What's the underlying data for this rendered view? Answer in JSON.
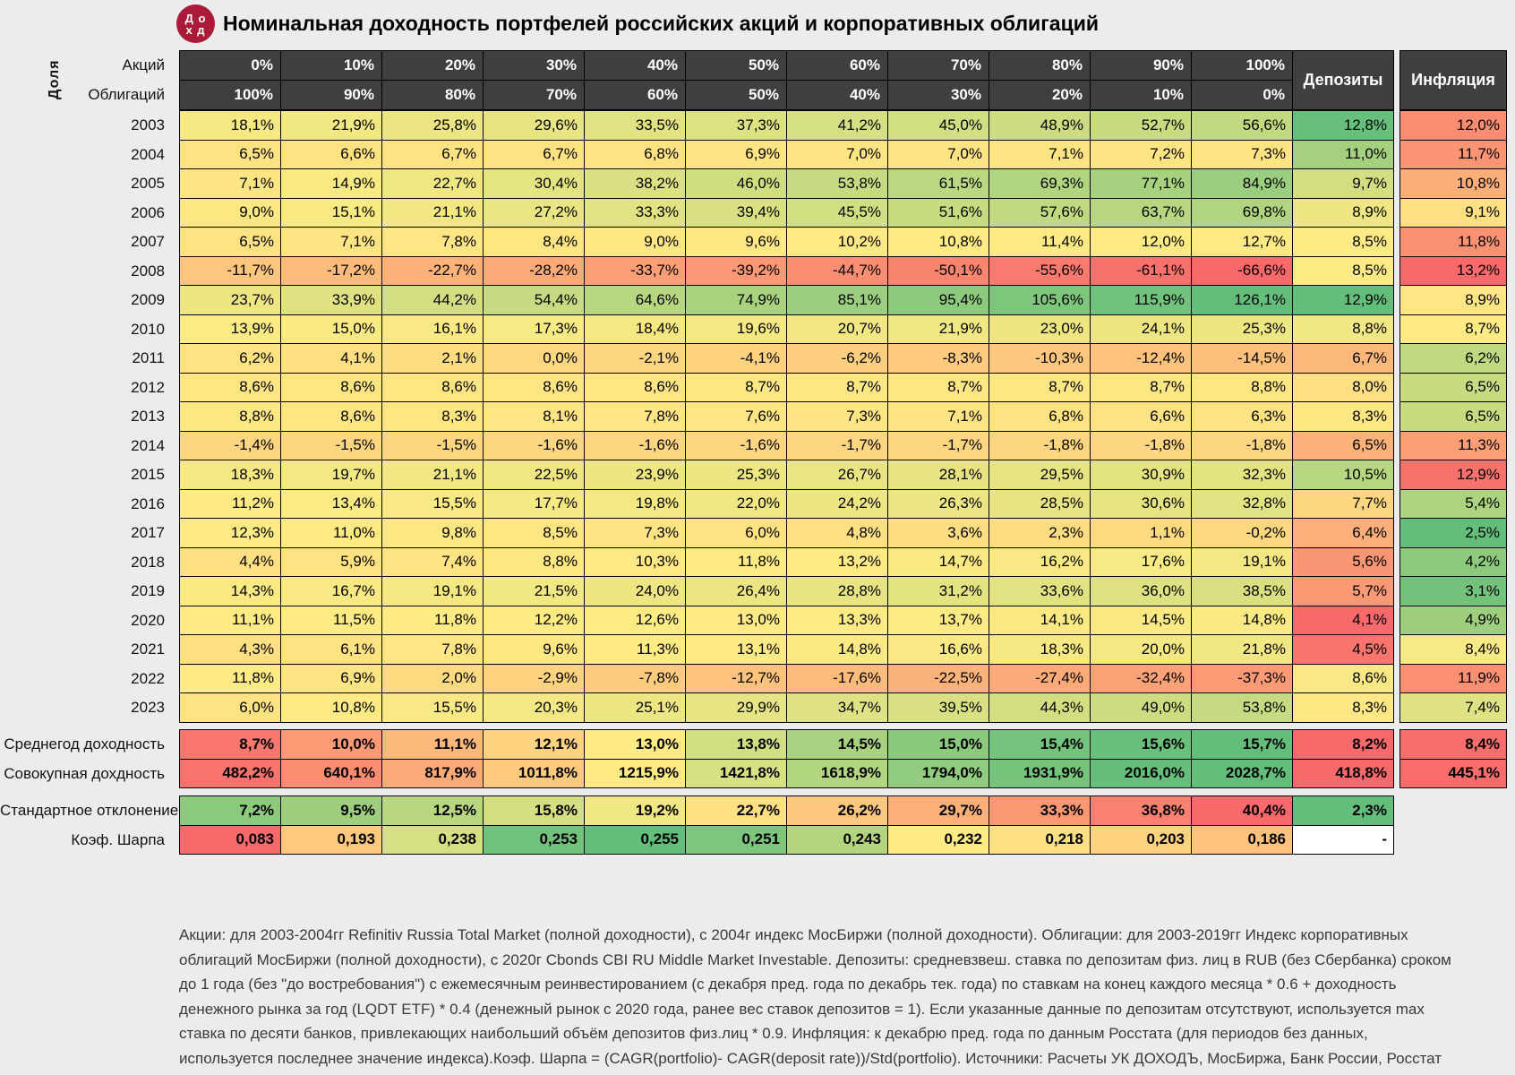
{
  "title": "Номинальная доходность портфелей российских акций и корпоративных облигаций",
  "logo_glyphs": "Д о\nх д",
  "header": {
    "share_label": "Доля",
    "stocks_label": "Акций",
    "bonds_label": "Облигаций",
    "deposits_label": "Депозиты",
    "inflation_label": "Инфляция"
  },
  "colors": {
    "scale_red": "#F8696B",
    "scale_yellow": "#FFEB84",
    "scale_green": "#63BE7B",
    "header_bg": "#3F3F3F",
    "header_text": "#FFFFFF",
    "border": "#000000",
    "page_bg": "#ECECEC",
    "logo_bg": "#AB1A38",
    "title_text": "#000000",
    "footnote_text": "#3A3A3A",
    "empty_cell": "#FFFFFF"
  },
  "chart_data": {
    "type": "heatmap",
    "title": "Номинальная доходность портфелей российских акций и корпоративных облигаций",
    "columns": {
      "stock_shares": [
        "0%",
        "10%",
        "20%",
        "30%",
        "40%",
        "50%",
        "60%",
        "70%",
        "80%",
        "90%",
        "100%"
      ],
      "bond_shares": [
        "100%",
        "90%",
        "80%",
        "70%",
        "60%",
        "50%",
        "40%",
        "30%",
        "20%",
        "10%",
        "0%"
      ]
    },
    "scales": {
      "matrix": {
        "min": -66.6,
        "mid": 11.4,
        "max": 126.1,
        "inverse": false
      },
      "deposits": {
        "min": 4.1,
        "mid": 8.4,
        "max": 12.9,
        "inverse": false
      },
      "inflation": {
        "min": 2.5,
        "mid": 8.7,
        "max": 13.2,
        "inverse": true
      }
    },
    "rows": [
      {
        "year": "2003",
        "values": [
          "18,1%",
          "21,9%",
          "25,8%",
          "29,6%",
          "33,5%",
          "37,3%",
          "41,2%",
          "45,0%",
          "48,9%",
          "52,7%",
          "56,6%"
        ],
        "deposit": "12,8%",
        "inflation": "12,0%"
      },
      {
        "year": "2004",
        "values": [
          "6,5%",
          "6,6%",
          "6,7%",
          "6,7%",
          "6,8%",
          "6,9%",
          "7,0%",
          "7,0%",
          "7,1%",
          "7,2%",
          "7,3%"
        ],
        "deposit": "11,0%",
        "inflation": "11,7%"
      },
      {
        "year": "2005",
        "values": [
          "7,1%",
          "14,9%",
          "22,7%",
          "30,4%",
          "38,2%",
          "46,0%",
          "53,8%",
          "61,5%",
          "69,3%",
          "77,1%",
          "84,9%"
        ],
        "deposit": "9,7%",
        "inflation": "10,8%"
      },
      {
        "year": "2006",
        "values": [
          "9,0%",
          "15,1%",
          "21,1%",
          "27,2%",
          "33,3%",
          "39,4%",
          "45,5%",
          "51,6%",
          "57,6%",
          "63,7%",
          "69,8%"
        ],
        "deposit": "8,9%",
        "inflation": "9,1%"
      },
      {
        "year": "2007",
        "values": [
          "6,5%",
          "7,1%",
          "7,8%",
          "8,4%",
          "9,0%",
          "9,6%",
          "10,2%",
          "10,8%",
          "11,4%",
          "12,0%",
          "12,7%"
        ],
        "deposit": "8,5%",
        "inflation": "11,8%"
      },
      {
        "year": "2008",
        "values": [
          "-11,7%",
          "-17,2%",
          "-22,7%",
          "-28,2%",
          "-33,7%",
          "-39,2%",
          "-44,7%",
          "-50,1%",
          "-55,6%",
          "-61,1%",
          "-66,6%"
        ],
        "deposit": "8,5%",
        "inflation": "13,2%"
      },
      {
        "year": "2009",
        "values": [
          "23,7%",
          "33,9%",
          "44,2%",
          "54,4%",
          "64,6%",
          "74,9%",
          "85,1%",
          "95,4%",
          "105,6%",
          "115,9%",
          "126,1%"
        ],
        "deposit": "12,9%",
        "inflation": "8,9%"
      },
      {
        "year": "2010",
        "values": [
          "13,9%",
          "15,0%",
          "16,1%",
          "17,3%",
          "18,4%",
          "19,6%",
          "20,7%",
          "21,9%",
          "23,0%",
          "24,1%",
          "25,3%"
        ],
        "deposit": "8,8%",
        "inflation": "8,7%"
      },
      {
        "year": "2011",
        "values": [
          "6,2%",
          "4,1%",
          "2,1%",
          "0,0%",
          "-2,1%",
          "-4,1%",
          "-6,2%",
          "-8,3%",
          "-10,3%",
          "-12,4%",
          "-14,5%"
        ],
        "deposit": "6,7%",
        "inflation": "6,2%"
      },
      {
        "year": "2012",
        "values": [
          "8,6%",
          "8,6%",
          "8,6%",
          "8,6%",
          "8,6%",
          "8,7%",
          "8,7%",
          "8,7%",
          "8,7%",
          "8,7%",
          "8,8%"
        ],
        "deposit": "8,0%",
        "inflation": "6,5%"
      },
      {
        "year": "2013",
        "values": [
          "8,8%",
          "8,6%",
          "8,3%",
          "8,1%",
          "7,8%",
          "7,6%",
          "7,3%",
          "7,1%",
          "6,8%",
          "6,6%",
          "6,3%"
        ],
        "deposit": "8,3%",
        "inflation": "6,5%"
      },
      {
        "year": "2014",
        "values": [
          "-1,4%",
          "-1,5%",
          "-1,5%",
          "-1,6%",
          "-1,6%",
          "-1,6%",
          "-1,7%",
          "-1,7%",
          "-1,8%",
          "-1,8%",
          "-1,8%"
        ],
        "deposit": "6,5%",
        "inflation": "11,3%"
      },
      {
        "year": "2015",
        "values": [
          "18,3%",
          "19,7%",
          "21,1%",
          "22,5%",
          "23,9%",
          "25,3%",
          "26,7%",
          "28,1%",
          "29,5%",
          "30,9%",
          "32,3%"
        ],
        "deposit": "10,5%",
        "inflation": "12,9%"
      },
      {
        "year": "2016",
        "values": [
          "11,2%",
          "13,4%",
          "15,5%",
          "17,7%",
          "19,8%",
          "22,0%",
          "24,2%",
          "26,3%",
          "28,5%",
          "30,6%",
          "32,8%"
        ],
        "deposit": "7,7%",
        "inflation": "5,4%"
      },
      {
        "year": "2017",
        "values": [
          "12,3%",
          "11,0%",
          "9,8%",
          "8,5%",
          "7,3%",
          "6,0%",
          "4,8%",
          "3,6%",
          "2,3%",
          "1,1%",
          "-0,2%"
        ],
        "deposit": "6,4%",
        "inflation": "2,5%"
      },
      {
        "year": "2018",
        "values": [
          "4,4%",
          "5,9%",
          "7,4%",
          "8,8%",
          "10,3%",
          "11,8%",
          "13,2%",
          "14,7%",
          "16,2%",
          "17,6%",
          "19,1%"
        ],
        "deposit": "5,6%",
        "inflation": "4,2%"
      },
      {
        "year": "2019",
        "values": [
          "14,3%",
          "16,7%",
          "19,1%",
          "21,5%",
          "24,0%",
          "26,4%",
          "28,8%",
          "31,2%",
          "33,6%",
          "36,0%",
          "38,5%"
        ],
        "deposit": "5,7%",
        "inflation": "3,1%"
      },
      {
        "year": "2020",
        "values": [
          "11,1%",
          "11,5%",
          "11,8%",
          "12,2%",
          "12,6%",
          "13,0%",
          "13,3%",
          "13,7%",
          "14,1%",
          "14,5%",
          "14,8%"
        ],
        "deposit": "4,1%",
        "inflation": "4,9%"
      },
      {
        "year": "2021",
        "values": [
          "4,3%",
          "6,1%",
          "7,8%",
          "9,6%",
          "11,3%",
          "13,1%",
          "14,8%",
          "16,6%",
          "18,3%",
          "20,0%",
          "21,8%"
        ],
        "deposit": "4,5%",
        "inflation": "8,4%"
      },
      {
        "year": "2022",
        "values": [
          "11,8%",
          "6,9%",
          "2,0%",
          "-2,9%",
          "-7,8%",
          "-12,7%",
          "-17,6%",
          "-22,5%",
          "-27,4%",
          "-32,4%",
          "-37,3%"
        ],
        "deposit": "8,6%",
        "inflation": "11,9%"
      },
      {
        "year": "2023",
        "values": [
          "6,0%",
          "10,8%",
          "15,5%",
          "20,3%",
          "25,1%",
          "29,9%",
          "34,7%",
          "39,5%",
          "44,3%",
          "49,0%",
          "53,8%"
        ],
        "deposit": "8,3%",
        "inflation": "7,4%"
      }
    ],
    "summary_rows": [
      {
        "label": "Среднегод доходность",
        "values": [
          "8,7%",
          "10,0%",
          "11,1%",
          "12,1%",
          "13,0%",
          "13,8%",
          "14,5%",
          "15,0%",
          "15,4%",
          "15,6%",
          "15,7%"
        ],
        "deposit": "8,2%",
        "inflation": "8,4%",
        "scale": {
          "min": 8.2,
          "mid": 13.0,
          "max": 15.7,
          "inverse": false
        }
      },
      {
        "label": "Совокупная дохдность",
        "values": [
          "482,2%",
          "640,1%",
          "817,9%",
          "1011,8%",
          "1215,9%",
          "1421,8%",
          "1618,9%",
          "1794,0%",
          "1931,9%",
          "2016,0%",
          "2028,7%"
        ],
        "deposit": "418,8%",
        "inflation": "445,1%",
        "scale": {
          "min": 418.8,
          "mid": 1215.9,
          "max": 2028.7,
          "inverse": false
        }
      },
      {
        "label": "Стандартное отклонение",
        "values": [
          "7,2%",
          "9,5%",
          "12,5%",
          "15,8%",
          "19,2%",
          "22,7%",
          "26,2%",
          "29,7%",
          "33,3%",
          "36,8%",
          "40,4%"
        ],
        "deposit": "2,3%",
        "inflation": null,
        "scale": {
          "min": 2.3,
          "mid": 20.9,
          "max": 40.4,
          "inverse": true
        }
      },
      {
        "label": "Коэф. Шарпа",
        "values": [
          "0,083",
          "0,193",
          "0,238",
          "0,253",
          "0,255",
          "0,251",
          "0,243",
          "0,232",
          "0,218",
          "0,203",
          "0,186"
        ],
        "deposit": "-",
        "inflation": null,
        "scale": {
          "min": 0.083,
          "mid": 0.232,
          "max": 0.255,
          "inverse": false
        }
      }
    ]
  },
  "footnote_lines": [
    "Акции: для 2003-2004гг Refinitiv Russia Total Market (полной доходности), с 2004г индекс МосБиржи (полной доходности). Облигации: для 2003-2019гг Индекс корпоративных",
    "облигаций МосБиржи (полной доходности), с 2020г Cbonds CBI RU Middle Market Investable. Депозиты: средневзвеш. ставка по  депозитам физ. лиц в RUB (без Сбербанка) сроком",
    "до 1 года (без \"до востребования\") с ежемесячным реинвестированием (с декабря пред. года по декабрь тек. года) по ставкам на конец каждого месяца * 0.6 + доходность",
    "денежного рынка за год (LQDT ETF) * 0.4 (денежный рынок с 2020 года, ранее вес ставок депозитов = 1). Если указанные данные по депозитам отсутствуют, используется max",
    "ставка по десяти банков, привлекающих наибольший объём депозитов физ.лиц * 0.9. Инфляция: к декабрю пред. года по данным Росстата (для периодов без данных,",
    "используется последнее значение индекса).Коэф. Шарпа = (CAGR(portfolio)- CAGR(deposit rate))/Std(portfolio). Источники: Расчеты УК ДОХОДЪ, МосБиржа, Банк России, Росстат"
  ]
}
